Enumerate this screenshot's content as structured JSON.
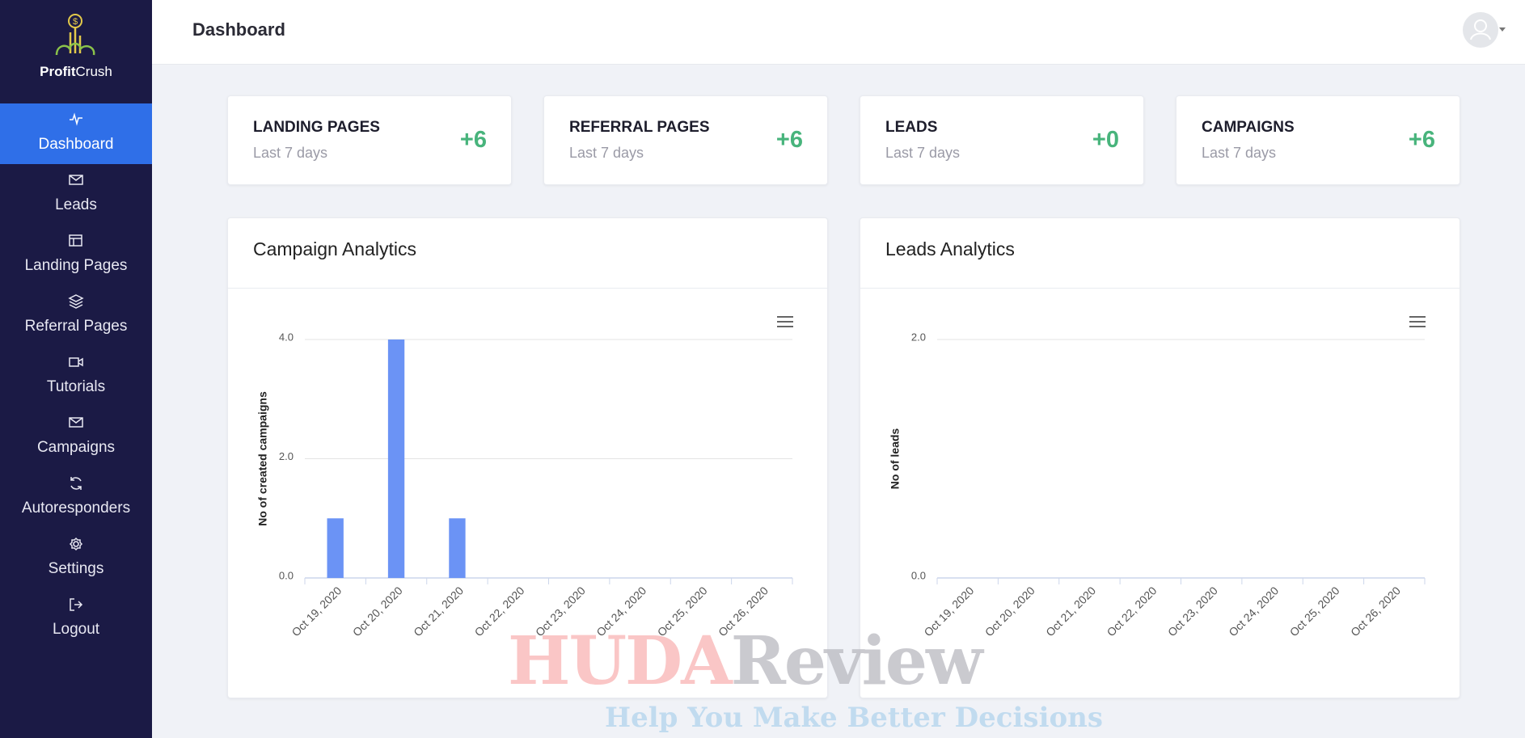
{
  "brand": {
    "name_bold": "Profit",
    "name_rest": "Crush"
  },
  "header": {
    "title": "Dashboard"
  },
  "sidebar": [
    "Dashboard",
    "Leads",
    "Landing Pages",
    "Referral Pages",
    "Tutorials",
    "Campaigns",
    "Autoresponders",
    "Settings",
    "Logout"
  ],
  "stats": [
    {
      "title": "LANDING PAGES",
      "subtitle": "Last 7 days",
      "change": "+6"
    },
    {
      "title": "REFERRAL PAGES",
      "subtitle": "Last 7 days",
      "change": "+6"
    },
    {
      "title": "LEADS",
      "subtitle": "Last 7 days",
      "change": "+0"
    },
    {
      "title": "CAMPAIGNS",
      "subtitle": "Last 7 days",
      "change": "+6"
    }
  ],
  "charts": [
    {
      "type": "bar",
      "title": "Campaign Analytics",
      "y_label": "No of created campaigns",
      "categories": [
        "Oct 19, 2020",
        "Oct 20, 2020",
        "Oct 21, 2020",
        "Oct 22, 2020",
        "Oct 23, 2020",
        "Oct 24, 2020",
        "Oct 25, 2020",
        "Oct 26, 2020"
      ],
      "values": [
        1,
        4,
        1,
        0,
        0,
        0,
        0,
        0
      ],
      "color": "#6b93f5",
      "ylim": [
        0,
        4
      ],
      "yticks": [
        {
          "value": 0,
          "label": "0.0"
        },
        {
          "value": 2,
          "label": "2.0"
        },
        {
          "value": 4,
          "label": "4.0"
        }
      ],
      "grid": true
    },
    {
      "type": "bar",
      "title": "Leads Analytics",
      "y_label": "No of leads",
      "categories": [
        "Oct 19, 2020",
        "Oct 20, 2020",
        "Oct 21, 2020",
        "Oct 22, 2020",
        "Oct 23, 2020",
        "Oct 24, 2020",
        "Oct 25, 2020",
        "Oct 26, 2020"
      ],
      "values": [
        0,
        0,
        0,
        0,
        0,
        0,
        0,
        0
      ],
      "color": "#6b93f5",
      "ylim": [
        0,
        2
      ],
      "yticks": [
        {
          "value": 0,
          "label": "0.0"
        },
        {
          "value": 2,
          "label": "2.0"
        }
      ],
      "grid": true
    }
  ],
  "watermark": {
    "main_a": "HUDA",
    "main_b": "Review",
    "tagline": "Help You Make Better Decisions"
  }
}
